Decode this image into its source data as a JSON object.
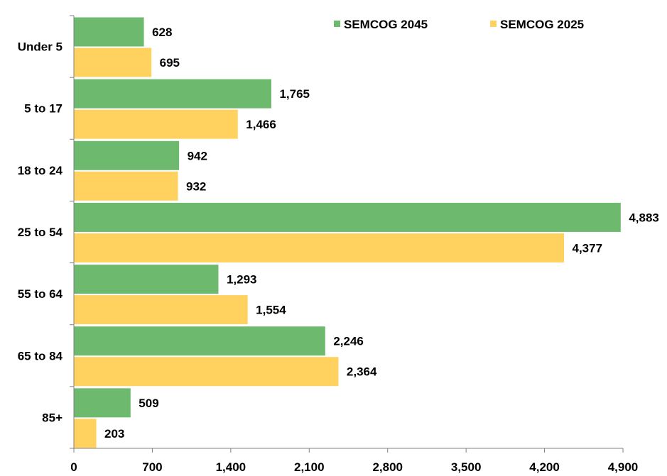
{
  "chart_data": {
    "type": "bar",
    "orientation": "horizontal",
    "categories": [
      "Under 5",
      "5 to 17",
      "18 to 24",
      "25 to 54",
      "55 to 64",
      "65 to 84",
      "85+"
    ],
    "series": [
      {
        "name": "SEMCOG 2045",
        "color": "#6db96d",
        "values": [
          628,
          1765,
          942,
          4883,
          1293,
          2246,
          509
        ],
        "labels": [
          "628",
          "1,765",
          "942",
          "4,883",
          "1,293",
          "2,246",
          "509"
        ]
      },
      {
        "name": "SEMCOG 2025",
        "color": "#ffd15f",
        "values": [
          695,
          1466,
          932,
          4377,
          1554,
          2364,
          203
        ],
        "labels": [
          "695",
          "1,466",
          "932",
          "4,377",
          "1,554",
          "2,364",
          "203"
        ]
      }
    ],
    "xlim": [
      0,
      4900
    ],
    "xticks": [
      0,
      700,
      1400,
      2100,
      2800,
      3500,
      4200,
      4900
    ],
    "xtick_labels": [
      "0",
      "700",
      "1,400",
      "2,100",
      "2,800",
      "3,500",
      "4,200",
      "4,900"
    ],
    "grid": false,
    "legend_position": "top-right",
    "title": "",
    "xlabel": "",
    "ylabel": ""
  }
}
